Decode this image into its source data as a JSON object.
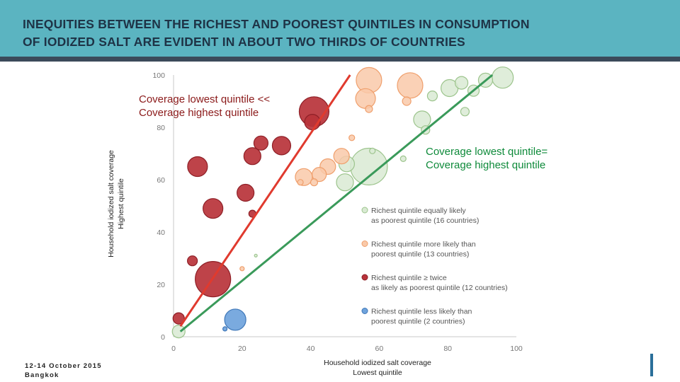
{
  "header": {
    "title_line1": "INEQUITIES BETWEEN THE RICHEST AND POOREST QUINTILES IN CONSUMPTION",
    "title_line2": "OF IODIZED SALT ARE EVIDENT IN ABOUT TWO THIRDS OF COUNTRIES"
  },
  "colors": {
    "banner": "#5bb4c1",
    "red_line": "#e03a2e",
    "green_line": "#3a9a5a",
    "green_bubble": "#d9ead3",
    "orange_bubble": "#f9c9a9",
    "red_bubble": "#b8333a",
    "blue_bubble": "#6fa3dc"
  },
  "chart_data": {
    "type": "scatter",
    "variant": "bubble",
    "xlabel_line1": "Household iodized salt coverage",
    "xlabel_line2": "Lowest quintile",
    "ylabel_line1": "Household iodized salt coverage",
    "ylabel_line2": "Highest quintile",
    "xlim": [
      0,
      100
    ],
    "ylim": [
      0,
      100
    ],
    "x_ticks": [
      0,
      20,
      40,
      60,
      80,
      100
    ],
    "y_ticks": [
      0,
      20,
      40,
      60,
      80,
      100
    ],
    "grid": false,
    "annotation_red_line1": "Coverage lowest quintile <<",
    "annotation_red_line2": "Coverage highest quintile",
    "annotation_green_line1": "Coverage lowest quintile=",
    "annotation_green_line2": "Coverage highest quintile",
    "lines": [
      {
        "color": "red",
        "x": [
          2,
          51.5
        ],
        "y": [
          4,
          100
        ]
      },
      {
        "color": "green",
        "x": [
          2,
          93
        ],
        "y": [
          2,
          100
        ]
      }
    ],
    "legend_position": "center-right",
    "series": [
      {
        "name": "Richest quintile equally likely as poorest quintile (16 countries)",
        "color": "#d9ead3",
        "points": [
          {
            "x": 1.5,
            "y": 2,
            "size": 9
          },
          {
            "x": 57,
            "y": 65,
            "size": 26
          },
          {
            "x": 50.5,
            "y": 66,
            "size": 11
          },
          {
            "x": 50,
            "y": 59,
            "size": 12
          },
          {
            "x": 72.5,
            "y": 83,
            "size": 12
          },
          {
            "x": 75.5,
            "y": 92,
            "size": 7
          },
          {
            "x": 84,
            "y": 97,
            "size": 9
          },
          {
            "x": 87.5,
            "y": 94,
            "size": 8
          },
          {
            "x": 91,
            "y": 98,
            "size": 10
          },
          {
            "x": 96,
            "y": 99,
            "size": 15
          },
          {
            "x": 80.5,
            "y": 95,
            "size": 12
          },
          {
            "x": 73.5,
            "y": 79,
            "size": 6
          },
          {
            "x": 85,
            "y": 86,
            "size": 6
          },
          {
            "x": 24,
            "y": 31,
            "size": 2
          },
          {
            "x": 58,
            "y": 71,
            "size": 4
          },
          {
            "x": 67,
            "y": 68,
            "size": 4
          }
        ]
      },
      {
        "name": "Richest quintile more likely than poorest quintile (13 countries)",
        "color": "#f9c9a9",
        "points": [
          {
            "x": 57,
            "y": 98,
            "size": 18
          },
          {
            "x": 56,
            "y": 91,
            "size": 14
          },
          {
            "x": 69,
            "y": 96,
            "size": 18
          },
          {
            "x": 68,
            "y": 90,
            "size": 6
          },
          {
            "x": 38,
            "y": 61,
            "size": 12
          },
          {
            "x": 42.5,
            "y": 62,
            "size": 10
          },
          {
            "x": 45,
            "y": 65,
            "size": 11
          },
          {
            "x": 49,
            "y": 69,
            "size": 11
          },
          {
            "x": 52,
            "y": 76,
            "size": 4
          },
          {
            "x": 57,
            "y": 87,
            "size": 5
          },
          {
            "x": 20,
            "y": 26,
            "size": 3
          },
          {
            "x": 37,
            "y": 59,
            "size": 4
          },
          {
            "x": 41,
            "y": 59,
            "size": 5
          }
        ]
      },
      {
        "name": "Richest quintile ≥ twice as likely as poorest quintile (12 countries)",
        "color": "#b8333a",
        "points": [
          {
            "x": 41,
            "y": 86,
            "size": 21
          },
          {
            "x": 40.5,
            "y": 82,
            "size": 11
          },
          {
            "x": 25.5,
            "y": 74,
            "size": 10
          },
          {
            "x": 31.5,
            "y": 73,
            "size": 13
          },
          {
            "x": 23,
            "y": 69,
            "size": 12
          },
          {
            "x": 7,
            "y": 65,
            "size": 14
          },
          {
            "x": 21,
            "y": 55,
            "size": 12
          },
          {
            "x": 11.5,
            "y": 49,
            "size": 14
          },
          {
            "x": 5.5,
            "y": 29,
            "size": 7
          },
          {
            "x": 11.5,
            "y": 22,
            "size": 25
          },
          {
            "x": 1.5,
            "y": 7,
            "size": 8
          },
          {
            "x": 23,
            "y": 47,
            "size": 5
          }
        ]
      },
      {
        "name": "Richest quintile less likely than poorest quintile (2 countries)",
        "color": "#6fa3dc",
        "points": [
          {
            "x": 18,
            "y": 6.5,
            "size": 15
          },
          {
            "x": 15,
            "y": 3,
            "size": 3
          }
        ]
      }
    ]
  },
  "footer": {
    "date": "12-14 October 2015",
    "place": "Bangkok"
  }
}
